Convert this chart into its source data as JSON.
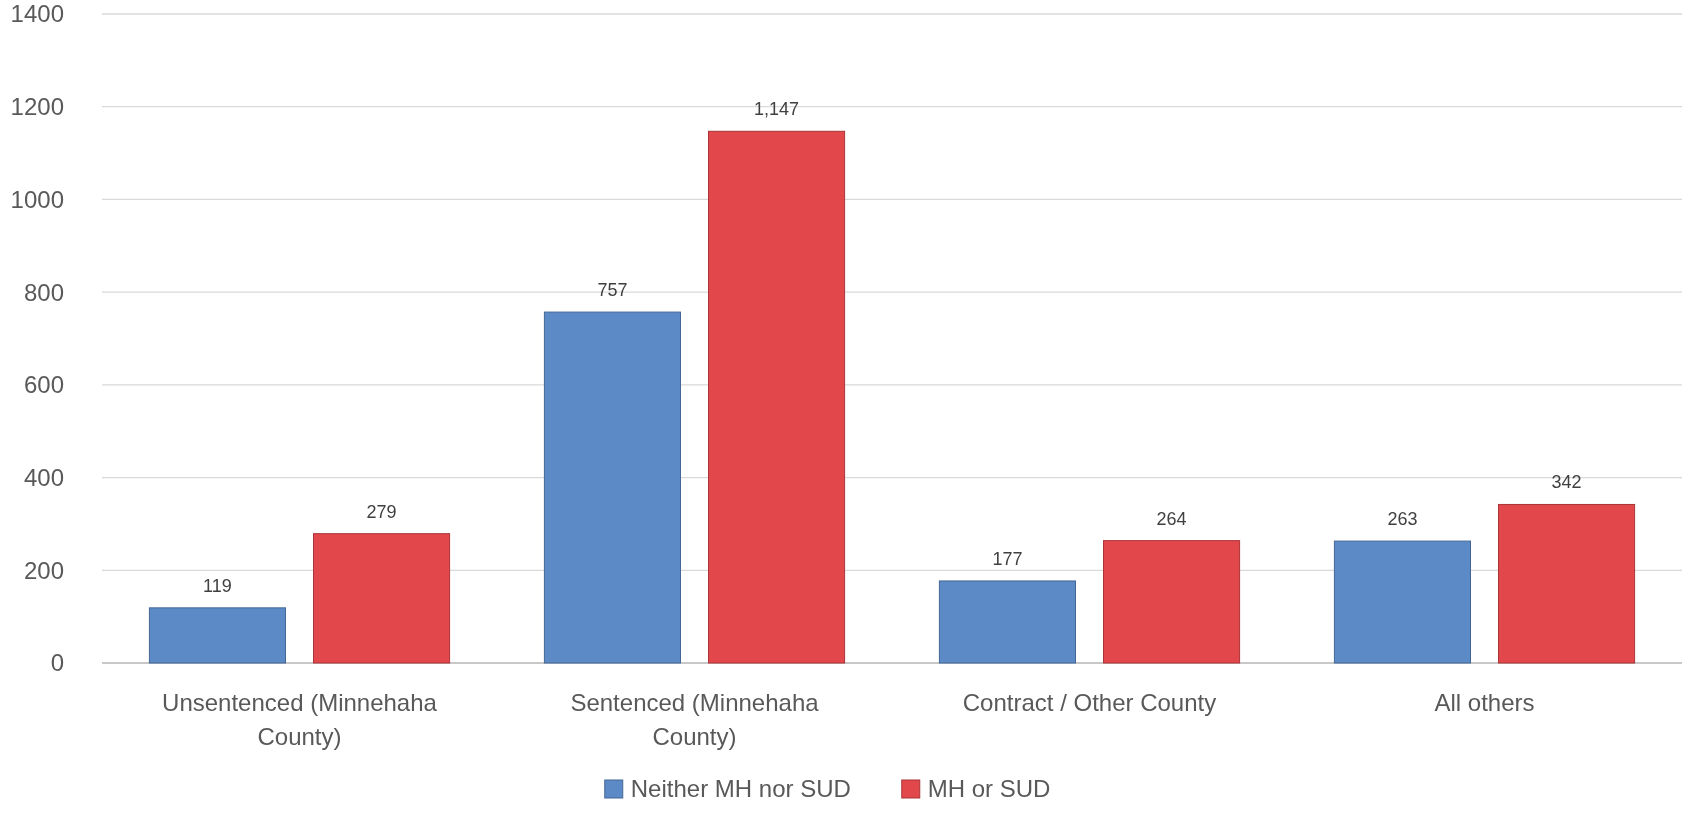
{
  "chart_data": {
    "type": "bar",
    "categories": [
      "Unsentenced (Minnehaha County)",
      "Sentenced (Minnehaha County)",
      "Contract / Other County",
      "All others"
    ],
    "series": [
      {
        "name": "Neither MH nor SUD",
        "color": "#5b8ac6",
        "values": [
          119,
          757,
          177,
          263
        ],
        "value_labels": [
          "119",
          "757",
          "177",
          "263"
        ]
      },
      {
        "name": "MH or SUD",
        "color": "#e2474b",
        "values": [
          279,
          1147,
          264,
          342
        ],
        "value_labels": [
          "279",
          "1,147",
          "264",
          "342"
        ]
      }
    ],
    "ylim": [
      0,
      1400
    ],
    "yticks": [
      0,
      200,
      400,
      600,
      800,
      1000,
      1200,
      1400
    ],
    "grid": "y",
    "legend": "bottom"
  }
}
